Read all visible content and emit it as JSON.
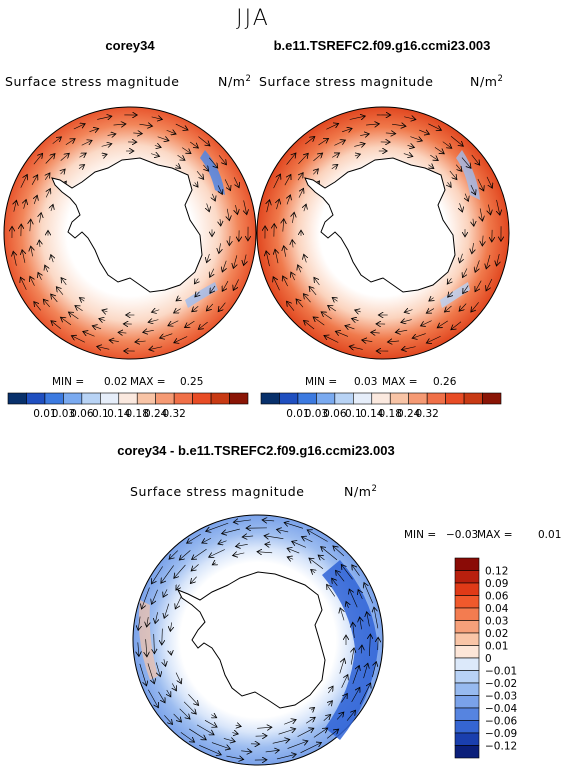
{
  "figure": {
    "title": "JJA",
    "panels": [
      {
        "case_label": "corey34",
        "field_label": "Surface stress magnitude",
        "units": "N/m",
        "units_exp": "2",
        "stats": {
          "min_label": "MIN =",
          "min": "0.02",
          "max_label": "MAX =",
          "max": "0.25"
        }
      },
      {
        "case_label": "b.e11.TSREFC2.f09.g16.ccmi23.003",
        "field_label": "Surface stress magnitude",
        "units": "N/m",
        "units_exp": "2",
        "stats": {
          "min_label": "MIN =",
          "min": "0.03",
          "max_label": "MAX =",
          "max": "0.26"
        }
      },
      {
        "case_label": "corey34 - b.e11.TSREFC2.f09.g16.ccmi23.003",
        "field_label": "Surface stress magnitude",
        "units": "N/m",
        "units_exp": "2",
        "stats": {
          "min_label": "MIN =",
          "min": "−0.03",
          "max_label": "MAX =",
          "max": "0.01"
        }
      }
    ],
    "colorbar_abs": {
      "labels": [
        "0.01",
        "0.03",
        "0.06",
        "0.1",
        "0.14",
        "0.18",
        "0.24",
        "0.32"
      ],
      "colors": [
        "#08306b",
        "#1f4fc0",
        "#3c7ae0",
        "#7aaaf0",
        "#b8d3f5",
        "#e6eefa",
        "#fbe9df",
        "#f8c4a6",
        "#f59a74",
        "#f07048",
        "#e84c25",
        "#c83a14",
        "#8a1506"
      ]
    },
    "colorbar_diff": {
      "labels": [
        "0.12",
        "0.09",
        "0.06",
        "0.04",
        "0.03",
        "0.02",
        "0.01",
        "0",
        "−0.01",
        "−0.02",
        "−0.03",
        "−0.04",
        "−0.06",
        "−0.09",
        "−0.12"
      ],
      "colors": [
        "#8a0b06",
        "#b8200e",
        "#e03a17",
        "#f0592c",
        "#f37c50",
        "#f6a07a",
        "#f9c5a7",
        "#fde6d8",
        "#dce9fa",
        "#b8d2f6",
        "#97baf0",
        "#7aa2ea",
        "#5684e0",
        "#3565d2",
        "#1a3fae",
        "#0b1f7a"
      ]
    }
  }
}
